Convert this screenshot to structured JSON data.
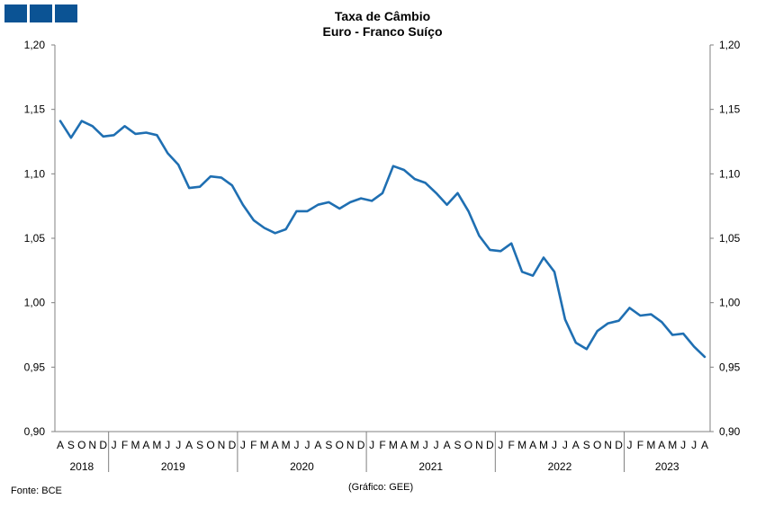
{
  "header": {
    "title_line1": "Taxa de Câmbio",
    "title_line2": "Euro - Franco Suíço"
  },
  "footer": {
    "source": "Fonte: BCE",
    "credit": "(Gráfico: GEE)"
  },
  "colors": {
    "line": "#1f6fb2",
    "logo": "#0b5394",
    "axis": "#808080"
  },
  "chart_data": {
    "type": "line",
    "title": "Taxa de Câmbio — Euro - Franco Suíço",
    "ylim": [
      0.9,
      1.2
    ],
    "yticks": [
      "0,90",
      "0,95",
      "1,00",
      "1,05",
      "1,10",
      "1,15",
      "1,20"
    ],
    "ytick_values": [
      0.9,
      0.95,
      1.0,
      1.05,
      1.1,
      1.15,
      1.2
    ],
    "grid": false,
    "legend": "none",
    "categories": [
      "A",
      "S",
      "O",
      "N",
      "D",
      "J",
      "F",
      "M",
      "A",
      "M",
      "J",
      "J",
      "A",
      "S",
      "O",
      "N",
      "D",
      "J",
      "F",
      "M",
      "A",
      "M",
      "J",
      "J",
      "A",
      "S",
      "O",
      "N",
      "D",
      "J",
      "F",
      "M",
      "A",
      "M",
      "J",
      "J",
      "A",
      "S",
      "O",
      "N",
      "D",
      "J",
      "F",
      "M",
      "A",
      "M",
      "J",
      "J",
      "A",
      "S",
      "O",
      "N",
      "D",
      "J",
      "F",
      "M",
      "A",
      "M",
      "J",
      "J",
      "A"
    ],
    "years": [
      {
        "label": "2018",
        "count": 5
      },
      {
        "label": "2019",
        "count": 12
      },
      {
        "label": "2020",
        "count": 12
      },
      {
        "label": "2021",
        "count": 12
      },
      {
        "label": "2022",
        "count": 12
      },
      {
        "label": "2023",
        "count": 8
      }
    ],
    "series": [
      {
        "values": [
          1.141,
          1.128,
          1.141,
          1.137,
          1.129,
          1.13,
          1.137,
          1.131,
          1.132,
          1.13,
          1.116,
          1.107,
          1.089,
          1.09,
          1.098,
          1.097,
          1.091,
          1.076,
          1.064,
          1.058,
          1.054,
          1.057,
          1.071,
          1.071,
          1.076,
          1.078,
          1.073,
          1.078,
          1.081,
          1.079,
          1.085,
          1.106,
          1.103,
          1.096,
          1.093,
          1.085,
          1.076,
          1.085,
          1.071,
          1.052,
          1.041,
          1.04,
          1.046,
          1.024,
          1.021,
          1.035,
          1.024,
          0.987,
          0.969,
          0.964,
          0.978,
          0.984,
          0.986,
          0.996,
          0.99,
          0.991,
          0.985,
          0.975,
          0.976,
          0.966,
          0.958
        ]
      }
    ]
  }
}
